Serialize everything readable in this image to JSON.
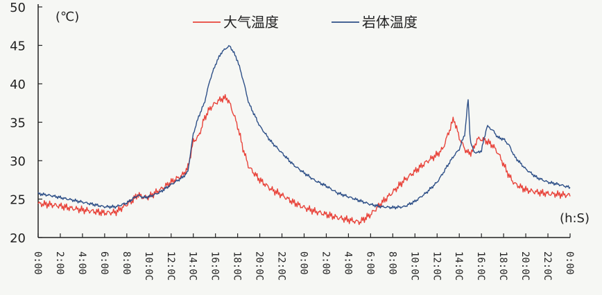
{
  "chart_data": {
    "type": "line",
    "title": "",
    "ylabel": "(℃)",
    "xlabel": "(h:S)",
    "ylim": [
      20,
      50
    ],
    "yticks": [
      20,
      25,
      30,
      35,
      40,
      45,
      50
    ],
    "grid": false,
    "legend_placement": "top-center",
    "x_tick_labels": [
      "0:00",
      "2:00",
      "4:00",
      "6:00",
      "8:00",
      "10:0C",
      "12:0C",
      "14:0C",
      "16:0C",
      "18:0C",
      "20:0C",
      "22:0C",
      "0:00",
      "2:00",
      "4:00",
      "6:00",
      "8:00",
      "10:0C",
      "12:0C",
      "14:0C",
      "16:0C",
      "18:0C",
      "20:0C",
      "22:0C",
      "0:00"
    ],
    "x_unit": "hour",
    "series": [
      {
        "name": "大气温度",
        "color": "#e8433a",
        "x": [
          0,
          1,
          2,
          3,
          4,
          5,
          6,
          7,
          8,
          8.5,
          9,
          9.5,
          10,
          11,
          12,
          13,
          13.5,
          14,
          14.5,
          15,
          15.5,
          16,
          16.5,
          17,
          17.3,
          17.6,
          18,
          18.5,
          19,
          20,
          21,
          22,
          23,
          24,
          25,
          26,
          27,
          28,
          29,
          30,
          31,
          32,
          33,
          34,
          35,
          36,
          36.5,
          37,
          37.5,
          38,
          38.5,
          38.8,
          39,
          39.3,
          39.6,
          40,
          40.5,
          41,
          41.5,
          42,
          42.5,
          43,
          44,
          45,
          46,
          47,
          48
        ],
        "values": [
          24.4,
          24.3,
          24.1,
          23.8,
          23.6,
          23.4,
          23.2,
          23.3,
          24.3,
          24.8,
          25.6,
          25.2,
          25.3,
          26.2,
          27.2,
          28.1,
          29.0,
          32.5,
          33.2,
          35.5,
          36.8,
          37.5,
          38.0,
          38.2,
          37.4,
          36.2,
          34.5,
          31.5,
          29.2,
          27.5,
          26.3,
          25.5,
          24.6,
          23.9,
          23.4,
          23.0,
          22.6,
          22.3,
          22.0,
          23.0,
          24.5,
          25.9,
          27.4,
          28.6,
          29.8,
          30.8,
          31.5,
          33.5,
          35.5,
          33.0,
          31.5,
          31.0,
          31.0,
          31.5,
          32.8,
          32.8,
          32.5,
          32.0,
          31.0,
          29.5,
          28.0,
          27.0,
          26.2,
          25.9,
          25.7,
          25.6,
          25.5
        ]
      },
      {
        "name": "岩体温度",
        "color": "#2d4f87",
        "x": [
          0,
          1,
          2,
          3,
          4,
          5,
          6,
          7,
          8,
          8.5,
          9,
          9.5,
          10,
          11,
          12,
          13,
          13.5,
          14,
          14.5,
          15,
          15.5,
          16,
          16.5,
          17,
          17.3,
          17.6,
          18,
          18.5,
          19,
          20,
          21,
          22,
          23,
          24,
          25,
          26,
          27,
          28,
          29,
          30,
          31,
          32,
          33,
          34,
          35,
          36,
          36.5,
          37,
          37.5,
          38,
          38.5,
          38.8,
          39,
          39.3,
          39.6,
          40,
          40.5,
          41,
          41.5,
          42,
          42.5,
          43,
          44,
          45,
          46,
          47,
          48
        ],
        "values": [
          25.7,
          25.5,
          25.2,
          24.9,
          24.6,
          24.3,
          24.0,
          24.0,
          24.5,
          25.0,
          25.5,
          25.2,
          25.3,
          25.9,
          26.9,
          27.8,
          28.5,
          33.5,
          35.8,
          37.5,
          40.5,
          42.5,
          44.0,
          44.7,
          44.9,
          44.2,
          43.0,
          40.5,
          37.5,
          34.5,
          32.5,
          31.0,
          29.5,
          28.4,
          27.4,
          26.7,
          25.8,
          25.3,
          24.8,
          24.3,
          24.0,
          23.9,
          24.0,
          24.7,
          25.8,
          27.2,
          28.3,
          29.5,
          30.6,
          31.5,
          33.5,
          38.0,
          32.5,
          31.2,
          31.0,
          31.3,
          34.5,
          34.0,
          33.0,
          32.8,
          32.0,
          30.5,
          28.9,
          27.8,
          27.2,
          26.9,
          26.5
        ]
      }
    ]
  }
}
